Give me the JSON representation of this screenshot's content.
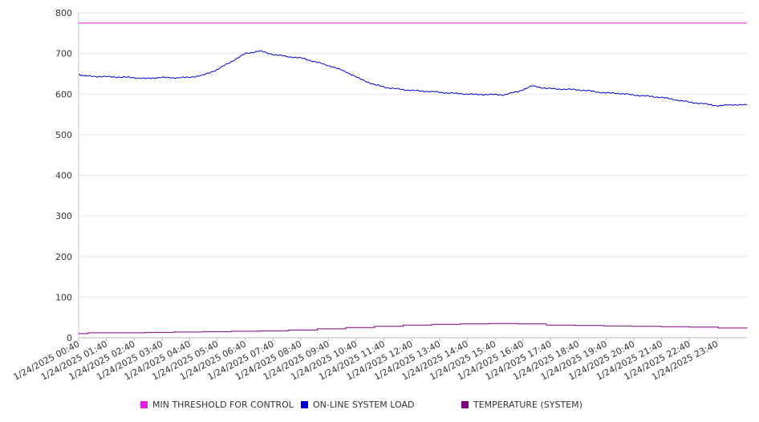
{
  "chart_data": {
    "type": "line",
    "title": "",
    "xlabel": "",
    "ylabel": "",
    "ylim": [
      0,
      800
    ],
    "yticks": [
      0,
      100,
      200,
      300,
      400,
      500,
      600,
      700,
      800
    ],
    "xticks": [
      "1/24/2025 00:40",
      "1/24/2025 01:40",
      "1/24/2025 02:40",
      "1/24/2025 03:40",
      "1/24/2025 04:40",
      "1/24/2025 05:40",
      "1/24/2025 06:40",
      "1/24/2025 07:40",
      "1/24/2025 08:40",
      "1/24/2025 09:40",
      "1/24/2025 10:40",
      "1/24/2025 11:40",
      "1/24/2025 12:40",
      "1/24/2025 13:40",
      "1/24/2025 14:40",
      "1/24/2025 15:40",
      "1/24/2025 16:40",
      "1/24/2025 17:40",
      "1/24/2025 18:40",
      "1/24/2025 19:40",
      "1/24/2025 20:40",
      "1/24/2025 21:40",
      "1/24/2025 22:40",
      "1/24/2025 23:40"
    ],
    "x_hours": [
      0.67,
      1,
      1.5,
      2,
      2.5,
      3,
      3.5,
      4,
      4.5,
      5,
      5.5,
      6,
      6.5,
      7,
      7.5,
      8,
      8.5,
      9,
      9.5,
      10,
      10.5,
      11,
      11.5,
      12,
      12.5,
      13,
      13.5,
      14,
      14.5,
      15,
      15.5,
      16,
      16.5,
      17,
      17.5,
      18,
      18.5,
      19,
      19.5,
      20,
      20.5,
      21,
      21.5,
      22,
      22.5,
      23,
      23.5,
      24
    ],
    "x_hours_note": "",
    "grid": true,
    "legend_position": "bottom",
    "series": [
      {
        "name": "MIN THRESHOLD FOR CONTROL",
        "color": "#e020e0",
        "x": [
          0.67,
          24
        ],
        "values": [
          775,
          775
        ]
      },
      {
        "name": "ON-LINE SYSTEM LOAD",
        "color": "#0000cc",
        "x": [
          0.67,
          1,
          1.5,
          2,
          2.5,
          3,
          3.5,
          4,
          4.5,
          5,
          5.5,
          6,
          6.5,
          7,
          7.5,
          8,
          8.5,
          9,
          9.5,
          10,
          10.5,
          11,
          11.5,
          12,
          12.5,
          13,
          13.5,
          14,
          14.5,
          15,
          15.5,
          16,
          16.5,
          17,
          17.5,
          18,
          18.5,
          19,
          19.5,
          20,
          20.5,
          21,
          21.5,
          22,
          22.5,
          23,
          23.5,
          24
        ],
        "values": [
          648,
          644,
          643,
          642,
          641,
          638,
          641,
          640,
          641,
          646,
          660,
          680,
          700,
          706,
          697,
          692,
          688,
          678,
          668,
          655,
          637,
          623,
          615,
          611,
          608,
          606,
          603,
          601,
          599,
          599,
          598,
          606,
          620,
          614,
          612,
          611,
          608,
          603,
          602,
          598,
          595,
          592,
          586,
          580,
          576,
          571,
          574,
          573
        ]
      },
      {
        "name": "TEMPERATURE (SYSTEM)",
        "color": "#800080",
        "x": [
          0.67,
          1,
          2,
          3,
          4,
          5,
          6,
          7,
          8,
          9,
          10,
          11,
          12,
          13,
          14,
          15,
          16,
          17,
          18,
          19,
          20,
          21,
          22,
          23,
          24
        ],
        "values": [
          10,
          12,
          12,
          13,
          14,
          15,
          16,
          17,
          19,
          22,
          25,
          28,
          31,
          33,
          34,
          35,
          34,
          31,
          30,
          29,
          28,
          27,
          26,
          24,
          23
        ]
      }
    ]
  }
}
